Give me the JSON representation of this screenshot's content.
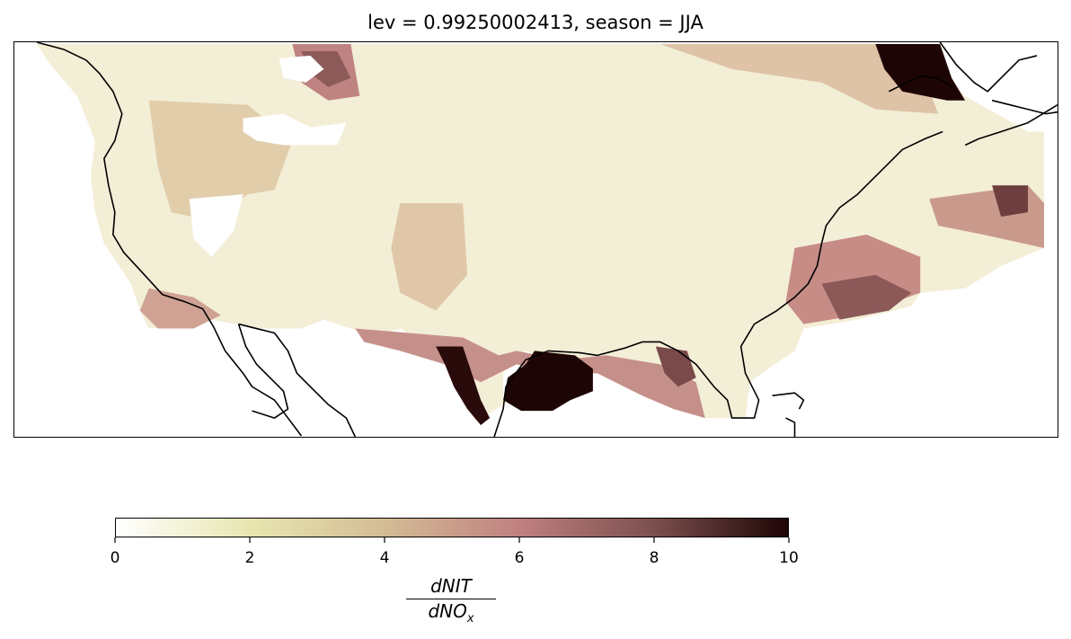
{
  "title": "lev = 0.99250002413, season = JJA",
  "colorbar": {
    "label_numerator": "dNIT",
    "label_denominator_base": "dNO",
    "label_denominator_sub": "x",
    "ticks": [
      "0",
      "2",
      "4",
      "6",
      "8",
      "10"
    ],
    "range": [
      0,
      10
    ],
    "colormap": [
      "#ffffff",
      "#e8e6b0",
      "#d3bc95",
      "#c08080",
      "#7c4f4f",
      "#1e0505"
    ]
  },
  "chart_data": {
    "type": "heatmap",
    "title": "lev = 0.99250002413, season = JJA",
    "colorbar_range": [
      0,
      10
    ],
    "colorbar_ticks": [
      0,
      2,
      4,
      6,
      8,
      10
    ],
    "domain": "contiguous United States with coastlines",
    "extent_lon": [
      -128,
      -64
    ],
    "extent_lat": [
      23,
      51
    ],
    "hotspots": [
      {
        "region": "Gulf coast of Texas / Louisiana",
        "value": 10
      },
      {
        "region": "Ontario / Quebec north of Great Lakes",
        "value": 10
      },
      {
        "region": "Northern Montana border",
        "value": 7
      },
      {
        "region": "Southern Atlantic offshore",
        "value": 6
      },
      {
        "region": "Florida Panhandle",
        "value": 7
      },
      {
        "region": "Northeast Atlantic offshore",
        "value": 7
      }
    ]
  }
}
